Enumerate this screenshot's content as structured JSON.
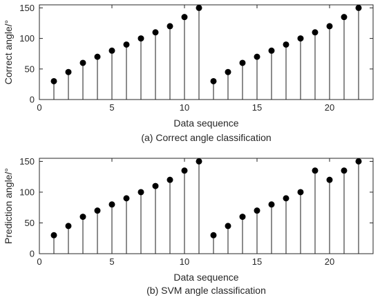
{
  "chart_data": [
    {
      "type": "stem",
      "x": [
        1,
        2,
        3,
        4,
        5,
        6,
        7,
        8,
        9,
        10,
        11,
        12,
        13,
        14,
        15,
        16,
        17,
        18,
        19,
        20,
        21,
        22
      ],
      "values": [
        30,
        45,
        60,
        70,
        80,
        90,
        100,
        110,
        120,
        135,
        150,
        30,
        45,
        60,
        70,
        80,
        90,
        100,
        110,
        120,
        135,
        150
      ],
      "xlabel": "Data sequence",
      "ylabel": "Correct angle/°",
      "caption": "(a) Correct angle classification",
      "xlim": [
        0,
        23
      ],
      "ylim": [
        0,
        155
      ],
      "xticks": [
        0,
        5,
        10,
        15,
        20
      ],
      "yticks": [
        0,
        50,
        100,
        150
      ],
      "grid": false,
      "marker_color": "#000000"
    },
    {
      "type": "stem",
      "x": [
        1,
        2,
        3,
        4,
        5,
        6,
        7,
        8,
        9,
        10,
        11,
        12,
        13,
        14,
        15,
        16,
        17,
        18,
        19,
        20,
        21,
        22
      ],
      "values": [
        30,
        45,
        60,
        70,
        80,
        90,
        100,
        110,
        120,
        135,
        150,
        30,
        45,
        60,
        70,
        80,
        90,
        100,
        135,
        120,
        135,
        150
      ],
      "xlabel": "Data sequence",
      "ylabel": "Prediction angle/°",
      "caption": "(b) SVM angle classification",
      "xlim": [
        0,
        23
      ],
      "ylim": [
        0,
        155
      ],
      "xticks": [
        0,
        5,
        10,
        15,
        20
      ],
      "yticks": [
        0,
        50,
        100,
        150
      ],
      "grid": false,
      "marker_color": "#000000"
    }
  ]
}
